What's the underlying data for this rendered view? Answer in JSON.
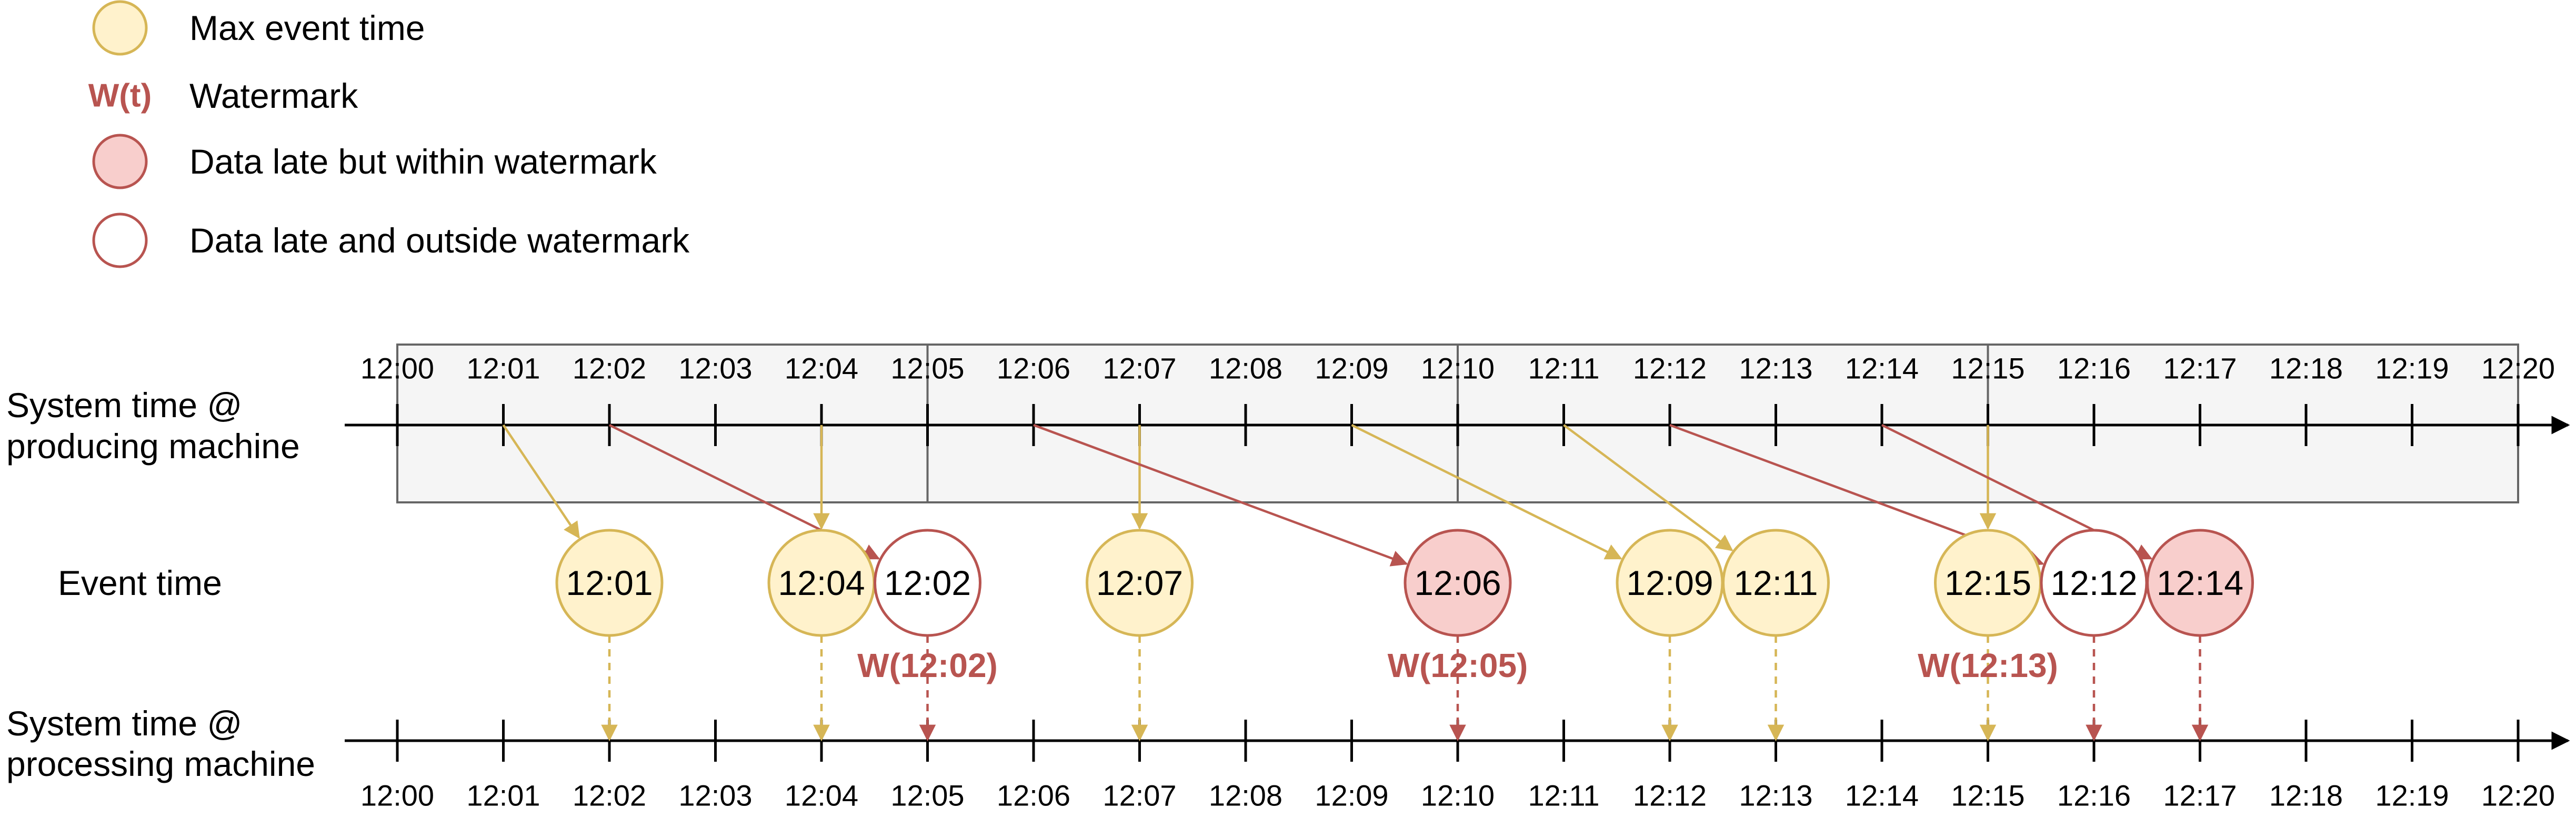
{
  "legend": {
    "max_event_time": "Max event time",
    "watermark_symbol": "W(t)",
    "watermark": "Watermark",
    "late_within": "Data late but within watermark",
    "late_outside": "Data late and outside watermark"
  },
  "rows": {
    "producing_line1": "System time @",
    "producing_line2": "producing machine",
    "event_time": "Event time",
    "processing_line1": "System time @",
    "processing_line2": "processing machine"
  },
  "ticks": [
    "12:00",
    "12:01",
    "12:02",
    "12:03",
    "12:04",
    "12:05",
    "12:06",
    "12:07",
    "12:08",
    "12:09",
    "12:10",
    "12:11",
    "12:12",
    "12:13",
    "12:14",
    "12:15",
    "12:16",
    "12:17",
    "12:18",
    "12:19",
    "12:20"
  ],
  "window_boundaries": [
    5,
    10,
    15
  ],
  "events": [
    {
      "label": "12:01",
      "kind": "max",
      "produced": 1,
      "processed": 2
    },
    {
      "label": "12:04",
      "kind": "max",
      "produced": 4,
      "processed": 4
    },
    {
      "label": "12:02",
      "kind": "outside",
      "produced": 2,
      "processed": 5
    },
    {
      "label": "12:07",
      "kind": "max",
      "produced": 7,
      "processed": 7
    },
    {
      "label": "12:06",
      "kind": "within",
      "produced": 6,
      "processed": 10
    },
    {
      "label": "12:09",
      "kind": "max",
      "produced": 9,
      "processed": 12
    },
    {
      "label": "12:11",
      "kind": "max",
      "produced": 11,
      "processed": 13
    },
    {
      "label": "12:15",
      "kind": "max",
      "produced": 15,
      "processed": 15
    },
    {
      "label": "12:12",
      "kind": "outside",
      "produced": 12,
      "processed": 16
    },
    {
      "label": "12:14",
      "kind": "within",
      "produced": 14,
      "processed": 17
    }
  ],
  "watermarks": [
    {
      "label": "W(12:02)",
      "at": 5
    },
    {
      "label": "W(12:05)",
      "at": 10
    },
    {
      "label": "W(12:13)",
      "at": 15
    }
  ],
  "colors": {
    "max_fill": "#fff2cc",
    "max_stroke": "#d6b656",
    "within_fill": "#f8cecc",
    "within_stroke": "#b85450",
    "outside_fill": "#ffffff",
    "outside_stroke": "#b85450",
    "watermark_text": "#b85450",
    "arrow_yellow": "#d6b656",
    "arrow_red": "#b85450",
    "window_fill": "#f5f5f5",
    "window_stroke": "#666666"
  }
}
